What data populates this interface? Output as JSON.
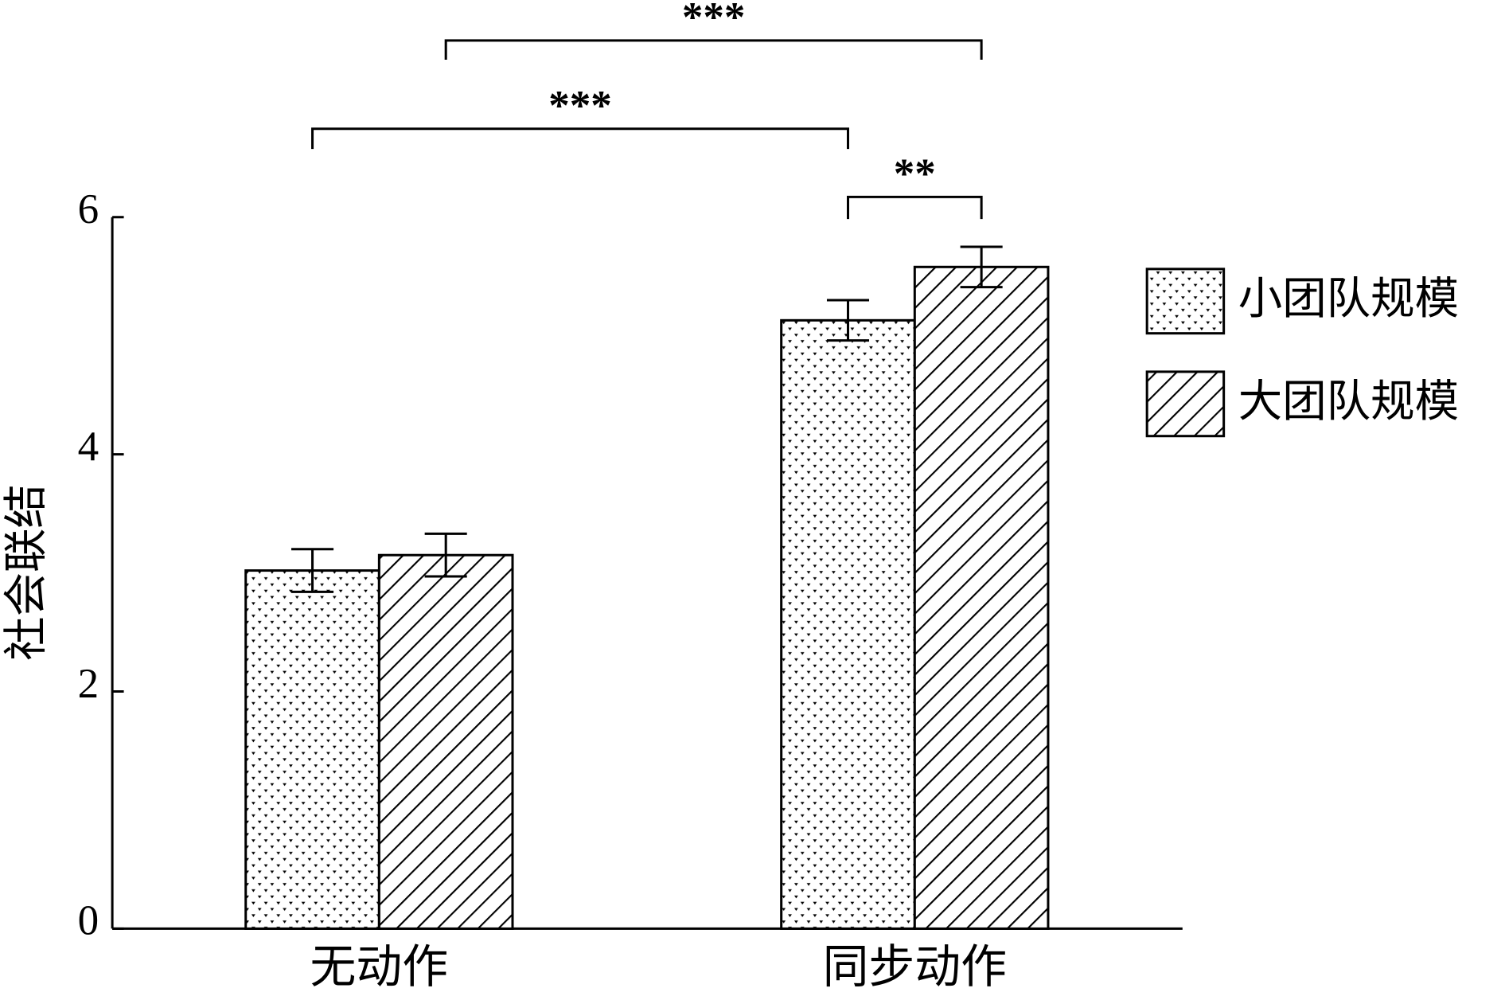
{
  "chart_data": {
    "type": "bar",
    "y_label": "社会联结",
    "categories": [
      "无动作",
      "同步动作"
    ],
    "series": [
      {
        "name": "小团队规模",
        "color": "#000000",
        "pattern": "dots",
        "values": [
          3.02,
          5.13
        ],
        "errors": [
          0.18,
          0.17
        ]
      },
      {
        "name": "大团队规模",
        "color": "#000000",
        "pattern": "diagonal",
        "values": [
          3.15,
          5.58
        ],
        "errors": [
          0.18,
          0.17
        ]
      }
    ],
    "ylim": [
      0,
      6
    ],
    "yticks": [
      0,
      2,
      4,
      6
    ],
    "grid": false,
    "legend": "upper right",
    "annotations": [
      "***",
      "***",
      "**"
    ]
  }
}
